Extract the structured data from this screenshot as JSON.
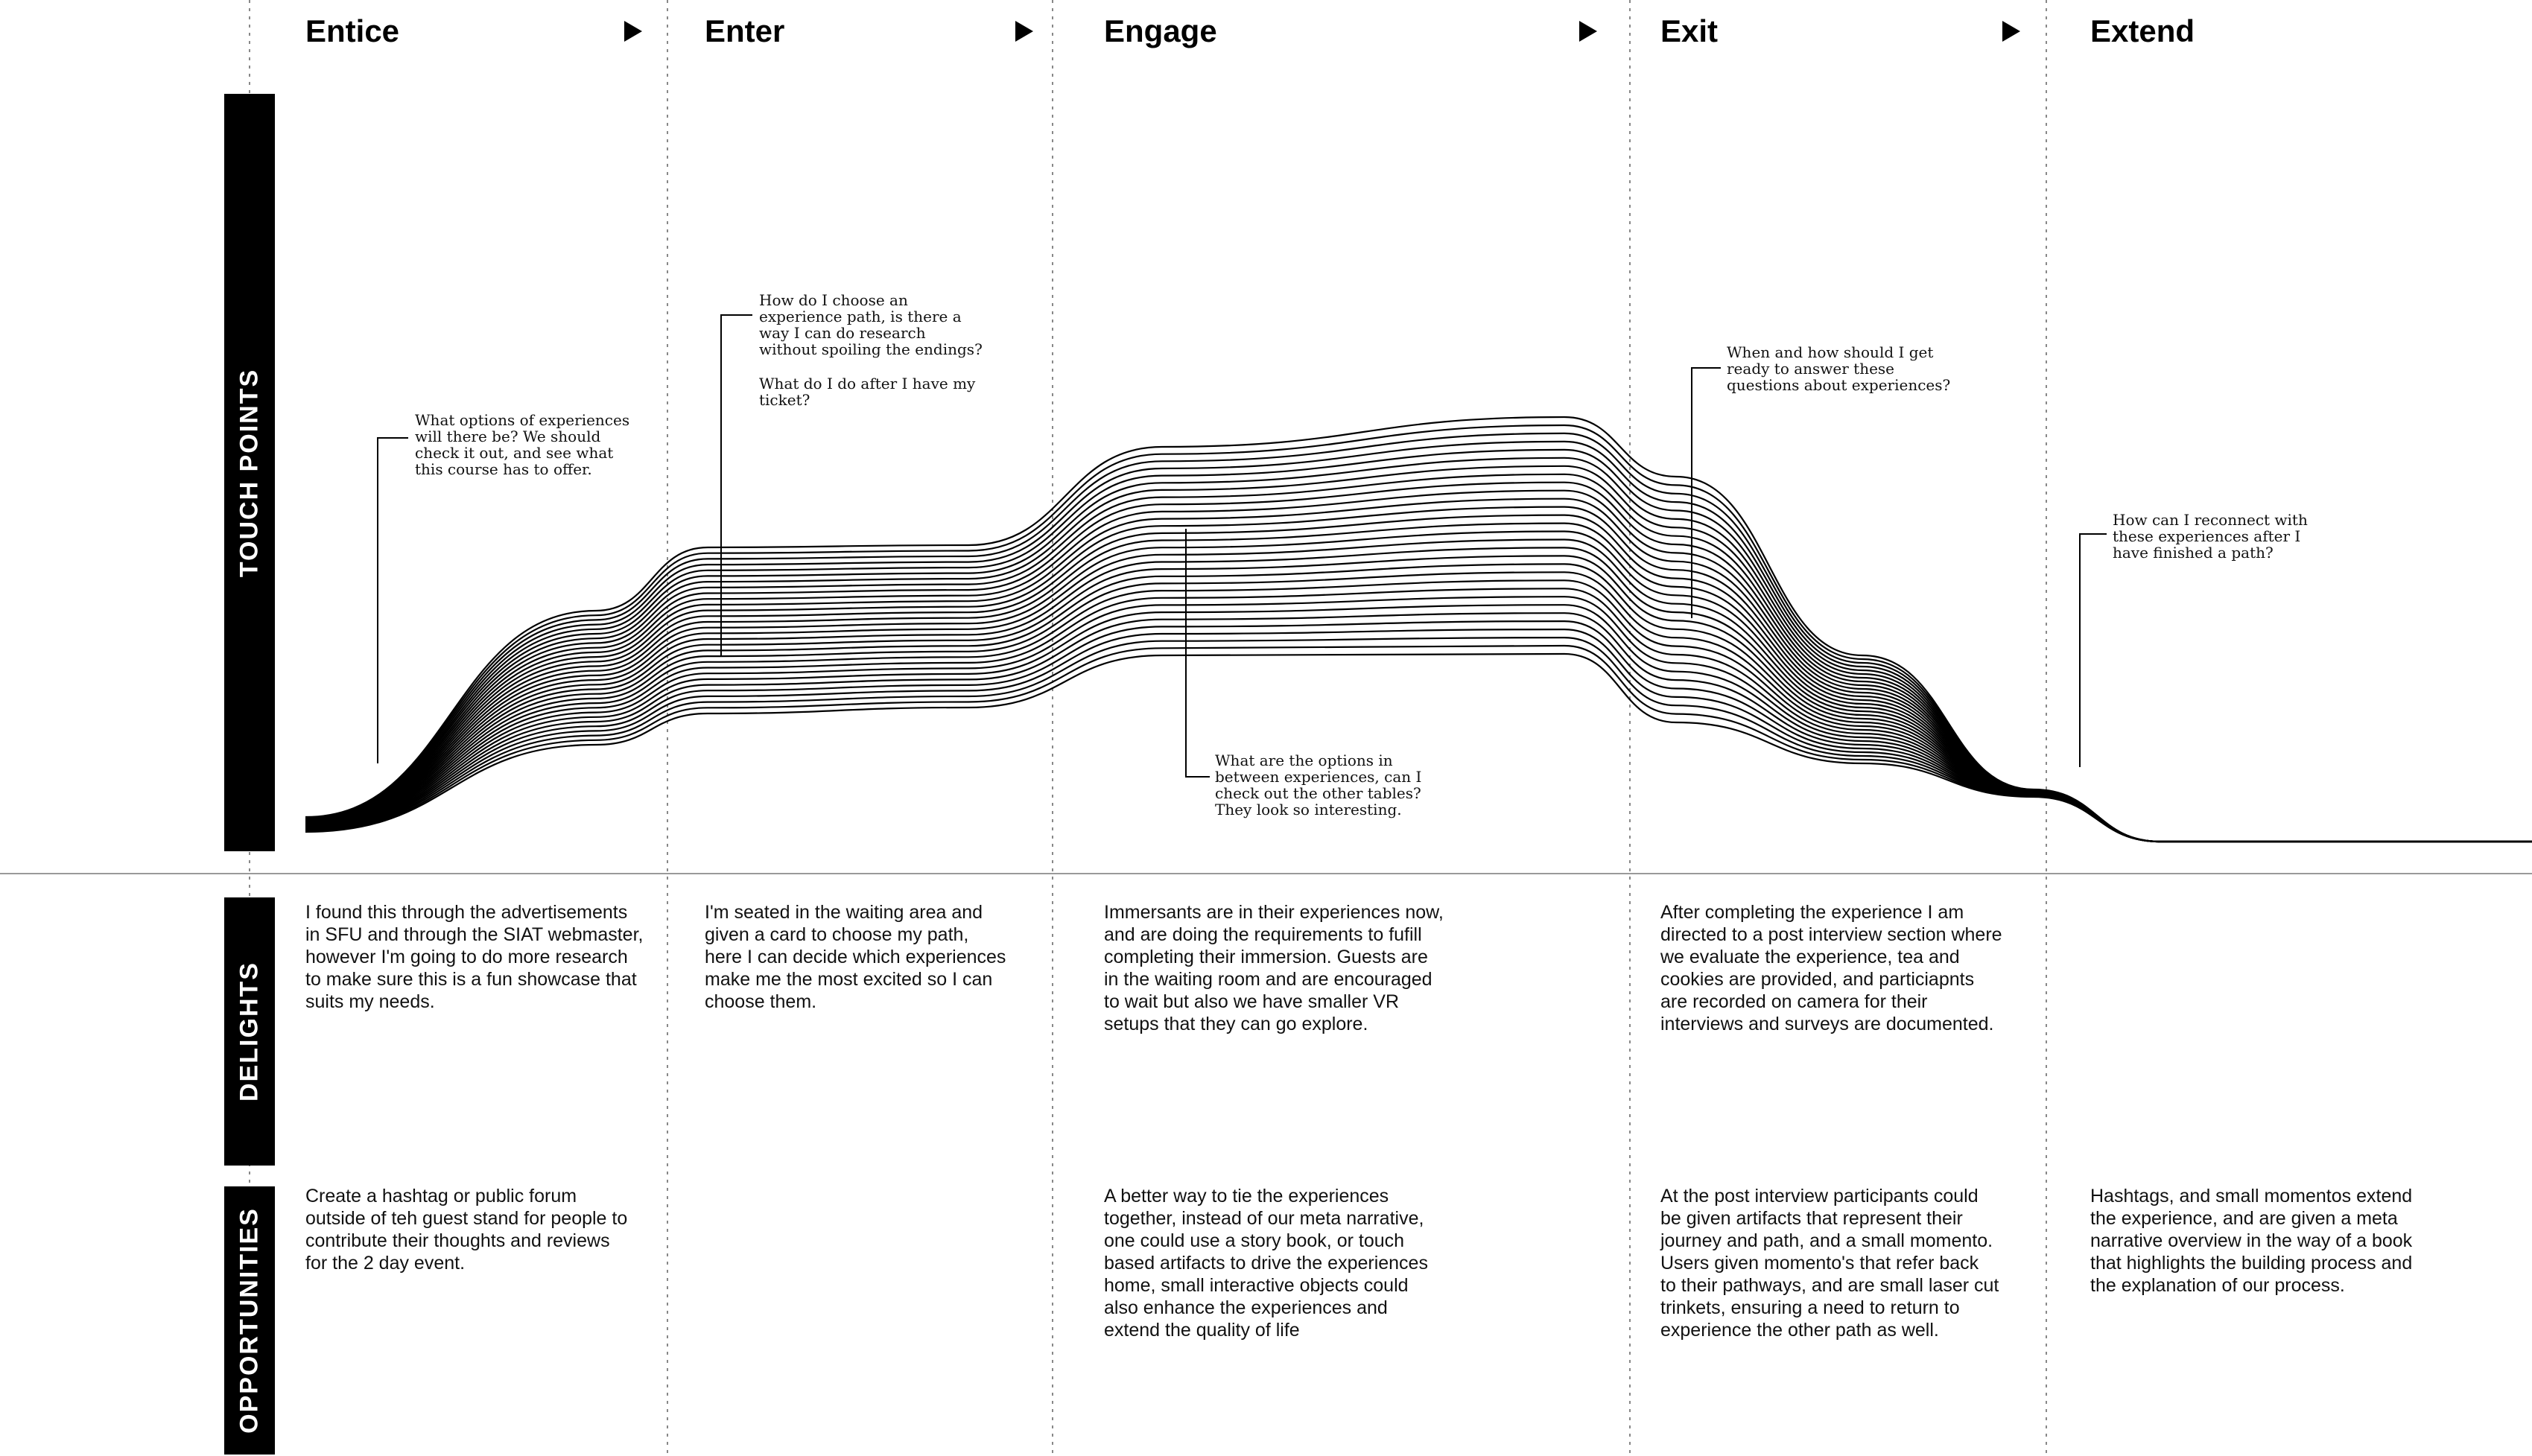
{
  "stages": [
    "Entice",
    "Enter",
    "Engage",
    "Exit",
    "Extend"
  ],
  "row_labels": {
    "touch_points": "TOUCH POINTS",
    "delights": "DELIGHTS",
    "opportunities": "OPPORTUNITIES"
  },
  "touch_point_notes": [
    {
      "lines": [
        "What options of experiences",
        "will there be? We should",
        "check it out, and see what",
        "this course has to offer."
      ]
    },
    {
      "lines": [
        "How do I choose an",
        "experience path, is there a",
        "way I can do research",
        "without spoiling the endings?",
        "",
        "What do I do after I have my",
        "ticket?"
      ]
    },
    {
      "lines": [
        "What are the options in",
        "between experiences, can I",
        "check out the other tables?",
        "They look so interesting."
      ]
    },
    {
      "lines": [
        "When and how should I get",
        "ready to answer these",
        "questions about experiences?"
      ]
    },
    {
      "lines": [
        "How can I reconnect with",
        "these experiences after I",
        "have finished a path?"
      ]
    }
  ],
  "delights": [
    [
      "I found this through the advertisements",
      "in SFU and through the SIAT webmaster,",
      "however I'm going to do more research",
      "to make sure this is a fun showcase that",
      "suits my needs."
    ],
    [
      "I'm seated in the waiting area and",
      "given a card to choose my path,",
      "here I can decide which experiences",
      "make me the most excited so I can",
      "choose them."
    ],
    [
      "Immersants are in their experiences now,",
      "and are doing the requirements to fufill",
      "completing their immersion. Guests are",
      "in the waiting room and are encouraged",
      "to wait but also we have smaller VR",
      "setups that they can go explore."
    ],
    [
      "After completing the experience I am",
      "directed to a post interview section where",
      "we evaluate the experience, tea and",
      "cookies are provided, and particiapnts",
      "are recorded on camera for their",
      "interviews and surveys are documented."
    ],
    []
  ],
  "opportunities": [
    [
      "Create a hashtag or public forum",
      "outside of teh guest stand for people to",
      "contribute their thoughts and reviews",
      "for the 2 day event."
    ],
    [],
    [
      "A better way to tie the experiences",
      "together, instead of our meta narrative,",
      "one could use a story book, or touch",
      "based artifacts to drive the experiences",
      "home, small interactive objects could",
      "also enhance the experiences and",
      "extend the quality of life"
    ],
    [
      "At the post interview participants could",
      "be given artifacts that represent their",
      "journey and path, and a small momento.",
      "Users given momento's that refer back",
      "to their pathways, and are small laser cut",
      "trinkets, ensuring a need to return to",
      "experience the other path as well."
    ],
    [
      "Hashtags, and small momentos extend",
      "the experience, and are given a meta",
      "narrative overview in the way of a book",
      "that highlights the building process and",
      "the explanation of our process."
    ]
  ],
  "colors": {
    "ink": "#000000",
    "divider": "#999999",
    "background": "#ffffff"
  }
}
